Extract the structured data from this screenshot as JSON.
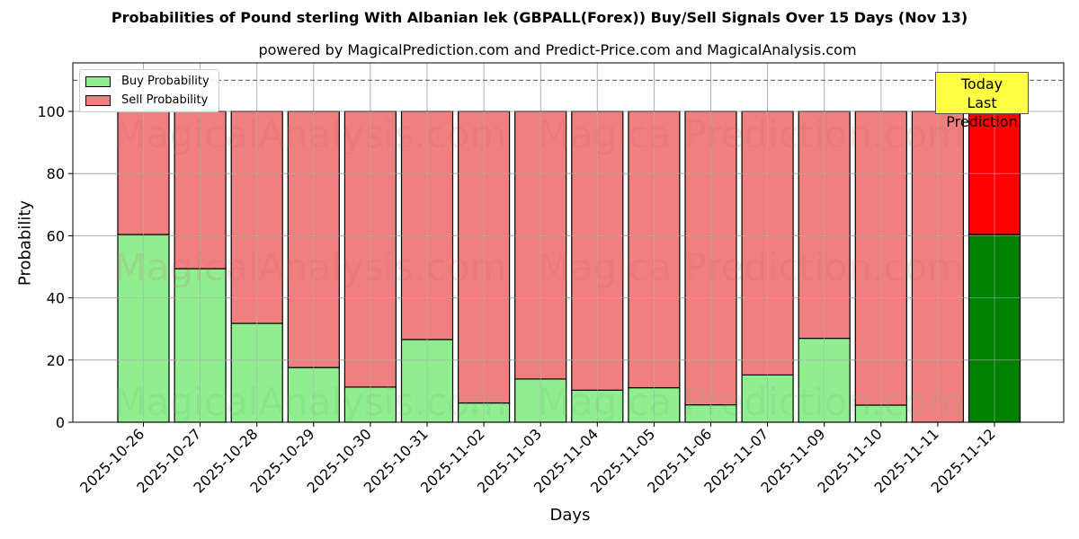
{
  "title": "Probabilities of Pound sterling With Albanian lek (GBPALL(Forex)) Buy/Sell Signals Over 15 Days (Nov 13)",
  "subtitle": "powered by MagicalPrediction.com and Predict-Price.com and MagicalAnalysis.com",
  "watermarks": [
    "MagicalAnalysis.com",
    "MagicalPrediction.com"
  ],
  "annotation": {
    "line1": "Today",
    "line2": "Last Prediction"
  },
  "colors": {
    "buy": "#90ee90",
    "sell": "#f08080",
    "today_buy": "#008000",
    "today_sell": "#ff0000",
    "annotation_bg": "#ffff44"
  },
  "chart_data": {
    "type": "bar",
    "stacked": true,
    "title": "Probabilities of Pound sterling With Albanian lek (GBPALL(Forex)) Buy/Sell Signals Over 15 Days (Nov 13)",
    "subtitle": "powered by MagicalPrediction.com and Predict-Price.com and MagicalAnalysis.com",
    "xlabel": "Days",
    "ylabel": "Probability",
    "ylim": [
      0,
      115
    ],
    "yticks": [
      0,
      20,
      40,
      60,
      80,
      100
    ],
    "reference_line": 110,
    "grid": true,
    "legend_position": "upper left",
    "categories": [
      "2025-10-26",
      "2025-10-27",
      "2025-10-28",
      "2025-10-29",
      "2025-10-30",
      "2025-10-31",
      "2025-11-02",
      "2025-11-03",
      "2025-11-04",
      "2025-11-05",
      "2025-11-06",
      "2025-11-07",
      "2025-11-09",
      "2025-11-10",
      "2025-11-11",
      "2025-11-12"
    ],
    "series": [
      {
        "name": "Buy Probability",
        "values": [
          60.4,
          49.4,
          31.8,
          17.6,
          11.3,
          26.6,
          6.2,
          13.9,
          10.3,
          11.1,
          5.6,
          15.2,
          27.0,
          5.5,
          0.0,
          60.4
        ]
      },
      {
        "name": "Sell Probability",
        "values": [
          39.6,
          50.6,
          68.2,
          82.4,
          88.7,
          73.4,
          93.8,
          86.1,
          89.7,
          88.9,
          94.4,
          84.8,
          73.0,
          94.5,
          100.0,
          39.6
        ]
      }
    ]
  }
}
